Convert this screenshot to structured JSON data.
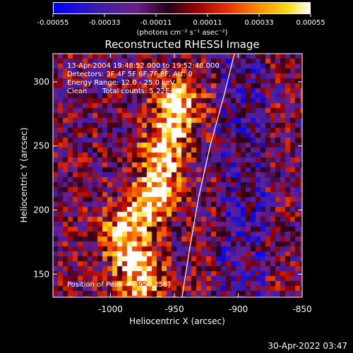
{
  "colorbar": {
    "tick_labels": [
      "-0.00055",
      "-0.00033",
      "-0.00011",
      "0.00011",
      "0.00033",
      "0.00055"
    ],
    "unit": "(photons cm⁻² s⁻¹ asec⁻²)"
  },
  "chart_data": {
    "type": "heatmap",
    "title": "Reconstructed RHESSI Image",
    "xlabel": "Heliocentric X (arcsec)",
    "ylabel": "Heliocentric Y (arcsec)",
    "xlim": [
      -1045,
      -850
    ],
    "ylim": [
      132,
      322
    ],
    "x_ticks": [
      -1000,
      -950,
      -900,
      -850
    ],
    "y_ticks": [
      150,
      200,
      250,
      300
    ],
    "x_tick_labels": [
      "-1000",
      "-950",
      "-900",
      "-850"
    ],
    "y_tick_labels": [
      "150",
      "200",
      "250",
      "300"
    ],
    "color_range": [
      -0.00055,
      0.00055
    ],
    "colormap": "blue-purple-red-orange-yellow-white",
    "limb_curve": [
      [
        -944,
        132
      ],
      [
        -938,
        170
      ],
      [
        -931,
        210
      ],
      [
        -922,
        250
      ],
      [
        -911,
        290
      ],
      [
        -903,
        322
      ]
    ],
    "bright_ridge": [
      [
        -975,
        145
      ],
      [
        -990,
        180
      ],
      [
        -965,
        210
      ],
      [
        -958,
        250
      ],
      [
        -947,
        285
      ]
    ],
    "peak": [
      -950,
      258
    ]
  },
  "annotations": {
    "time": "13-Apr-2004 19:48:52.000 to 19:52:48.000",
    "detectors": "Detectors: 3F 4F 5F 6F 7F 8F, Att: 0",
    "energy": "Energy Range: 12.0 - 25.0 keV",
    "clean": "Clean",
    "counts": "Total counts: 5.22E+03",
    "peak": "Position of Peak = [-950,258]"
  },
  "timestamp": "30-Apr-2022 03:47"
}
